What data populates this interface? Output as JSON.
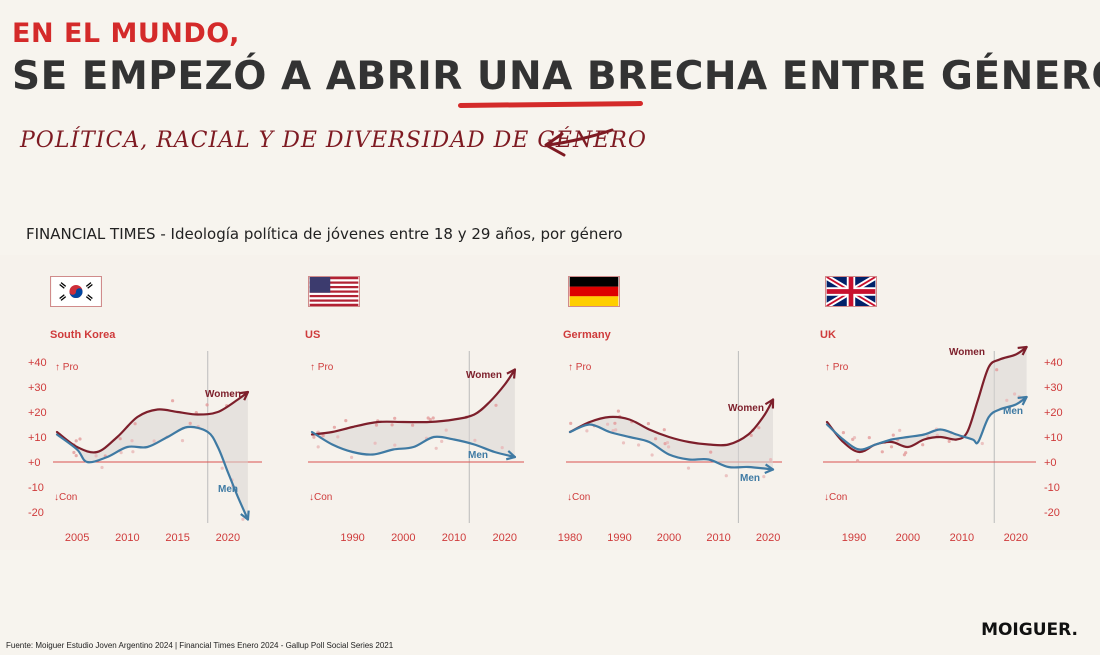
{
  "header": {
    "kicker": "EN EL MUNDO,",
    "headline": "SE EMPEZÓ A ABRIR UNA BRECHA ENTRE GÉNEROS",
    "handnote": "POLÍTICA, RACIAL Y DE DIVERSIDAD DE GÉNERO"
  },
  "source_line": "FINANCIAL TIMES - Ideología política de jóvenes entre 18 y 29 años, por género",
  "footnote": "Fuente: Moiguer Estudio Joven Argentino 2024 | Financial Times Enero 2024 - Gallup Poll Social Series 2021",
  "logo": "MOIGUER.",
  "colors": {
    "women": "#7d1f2b",
    "men": "#3f7aa3",
    "zero": "#d9534f",
    "axis_text": "#cf3b3b",
    "gap_fill": "#d9d6d4",
    "kicker": "#d42a2a"
  },
  "chart_data": [
    {
      "type": "line",
      "title": "South Korea",
      "flag": "south-korea-flag",
      "pro_label": "Pro",
      "con_label": "Con",
      "y_ticks": [
        "+40",
        "+30",
        "+20",
        "+10",
        "+0",
        "-10",
        "-20"
      ],
      "y_tick_side": "left",
      "ylim": [
        -22,
        42
      ],
      "xlim": [
        2003,
        2023
      ],
      "x_ticks": [
        2005,
        2010,
        2015,
        2020
      ],
      "ref_line": 2018,
      "series": [
        {
          "name": "Women",
          "x": [
            2003,
            2005,
            2007,
            2009,
            2011,
            2013,
            2015,
            2017,
            2019,
            2021,
            2022
          ],
          "values": [
            12,
            6,
            4,
            10,
            18,
            21,
            20,
            19,
            20,
            25,
            28
          ]
        },
        {
          "name": "Men",
          "x": [
            2003,
            2005,
            2006,
            2008,
            2010,
            2012,
            2014,
            2016,
            2018,
            2019,
            2020,
            2021,
            2022
          ],
          "values": [
            11,
            5,
            0,
            2,
            6,
            6,
            10,
            14,
            12,
            6,
            -4,
            -14,
            -23
          ]
        }
      ]
    },
    {
      "type": "line",
      "title": "US",
      "flag": "us-flag",
      "pro_label": "Pro",
      "con_label": "Con",
      "y_ticks": [],
      "ylim": [
        -22,
        42
      ],
      "xlim": [
        1982,
        2023
      ],
      "x_ticks": [
        1990,
        2000,
        2010,
        2020
      ],
      "ref_line": 2013,
      "series": [
        {
          "name": "Women",
          "x": [
            1982,
            1986,
            1990,
            1995,
            2000,
            2005,
            2010,
            2014,
            2017,
            2020,
            2022
          ],
          "values": [
            11,
            12,
            14,
            16,
            16,
            16,
            17,
            19,
            24,
            31,
            37
          ]
        },
        {
          "name": "Men",
          "x": [
            1982,
            1986,
            1990,
            1994,
            1998,
            2002,
            2006,
            2010,
            2014,
            2018,
            2022
          ],
          "values": [
            12,
            7,
            4,
            3,
            5,
            6,
            10,
            9,
            7,
            4,
            2
          ]
        }
      ]
    },
    {
      "type": "line",
      "title": "Germany",
      "flag": "germany-flag",
      "pro_label": "Pro",
      "con_label": "Con",
      "y_ticks": [],
      "ylim": [
        -22,
        42
      ],
      "xlim": [
        1980,
        2022
      ],
      "x_ticks": [
        1980,
        1990,
        2000,
        2010,
        2020
      ],
      "ref_line": 2014,
      "series": [
        {
          "name": "Women",
          "x": [
            1980,
            1984,
            1988,
            1992,
            1996,
            2000,
            2004,
            2008,
            2012,
            2016,
            2019,
            2021
          ],
          "values": [
            12,
            16,
            18,
            17,
            13,
            10,
            8,
            7,
            7,
            11,
            18,
            25
          ]
        },
        {
          "name": "Men",
          "x": [
            1980,
            1984,
            1988,
            1992,
            1996,
            2000,
            2004,
            2008,
            2012,
            2016,
            2021
          ],
          "values": [
            12,
            15,
            12,
            10,
            8,
            3,
            1,
            1,
            -2,
            -2,
            -3
          ]
        }
      ]
    },
    {
      "type": "line",
      "title": "UK",
      "flag": "uk-flag",
      "pro_label": "Pro",
      "con_label": "Con",
      "y_ticks": [
        "+40",
        "+30",
        "+20",
        "+10",
        "+0",
        "-10",
        "-20"
      ],
      "y_tick_side": "right",
      "ylim": [
        -22,
        42
      ],
      "xlim": [
        1985,
        2023
      ],
      "x_ticks": [
        1990,
        2000,
        2010,
        2020
      ],
      "ref_line": 2016,
      "series": [
        {
          "name": "Women",
          "x": [
            1985,
            1988,
            1991,
            1994,
            1997,
            2000,
            2003,
            2006,
            2009,
            2011,
            2013,
            2015,
            2017,
            2020,
            2022
          ],
          "values": [
            16,
            8,
            4,
            7,
            8,
            6,
            9,
            10,
            9,
            12,
            25,
            38,
            41,
            43,
            46
          ]
        },
        {
          "name": "Men",
          "x": [
            1985,
            1988,
            1991,
            1994,
            1997,
            2000,
            2003,
            2006,
            2009,
            2012,
            2013,
            2015,
            2017,
            2020,
            2022
          ],
          "values": [
            15,
            9,
            5,
            7,
            9,
            10,
            11,
            13,
            11,
            9,
            8,
            18,
            21,
            23,
            26
          ]
        }
      ]
    }
  ]
}
